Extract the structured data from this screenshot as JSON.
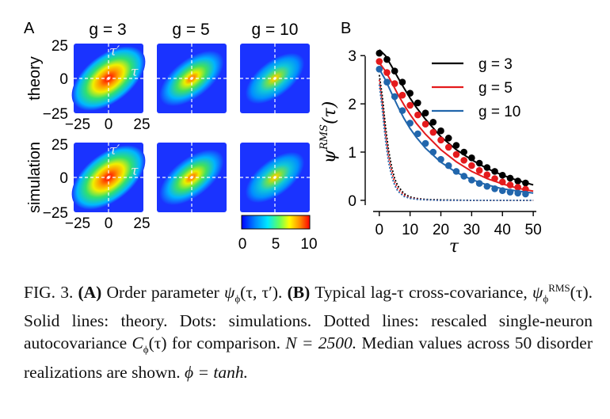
{
  "panel_a": {
    "label": "A",
    "columns": [
      "g = 3",
      "g = 5",
      "g = 10"
    ],
    "rows": [
      "theory",
      "simulation"
    ],
    "y_ticks": [
      "25",
      "0",
      "−25"
    ],
    "x_ticks": [
      "−25",
      "0",
      "25"
    ],
    "axis_tau_prime": "τ′",
    "axis_tau": "τ",
    "colorbar_ticks": [
      "0",
      "5",
      "10"
    ],
    "heatmap_peaks": [
      10,
      6,
      5
    ]
  },
  "chart_data": {
    "type": "line",
    "label": "B",
    "xlabel": "τ",
    "ylabel": "ψ^RMS(τ)",
    "xlim": [
      -2,
      51
    ],
    "ylim": [
      -0.1,
      3.25
    ],
    "x_ticks": [
      0,
      10,
      20,
      30,
      40,
      50
    ],
    "y_ticks": [
      0,
      1,
      2,
      3
    ],
    "legend_position": "top-right",
    "series": [
      {
        "name": "g = 3",
        "color": "#000000",
        "theory": {
          "x": [
            0,
            2,
            4,
            6,
            8,
            10,
            12,
            15,
            20,
            25,
            30,
            35,
            40,
            45,
            50
          ],
          "y": [
            3.12,
            3.0,
            2.78,
            2.55,
            2.33,
            2.12,
            1.93,
            1.68,
            1.32,
            1.05,
            0.84,
            0.66,
            0.52,
            0.41,
            0.32
          ]
        },
        "dots": {
          "x": [
            0,
            2.5,
            5,
            7.5,
            10,
            12.5,
            15,
            17.5,
            20,
            22.5,
            25,
            27.5,
            30,
            32.5,
            35,
            37.5,
            40,
            42.5,
            45,
            47.5
          ],
          "y": [
            3.05,
            2.92,
            2.68,
            2.45,
            2.22,
            2.02,
            1.81,
            1.62,
            1.44,
            1.29,
            1.14,
            1.0,
            0.88,
            0.77,
            0.68,
            0.6,
            0.52,
            0.46,
            0.4,
            0.36
          ]
        },
        "dotted": {
          "x": [
            0,
            1,
            2,
            3,
            4,
            5,
            6,
            8,
            10,
            12,
            15,
            20,
            30,
            40,
            50
          ],
          "y": [
            2.6,
            2.15,
            1.55,
            1.05,
            0.7,
            0.45,
            0.3,
            0.14,
            0.07,
            0.04,
            0.02,
            0.01,
            0.0,
            0.0,
            0.0
          ]
        }
      },
      {
        "name": "g = 5",
        "color": "#e41a1c",
        "theory": {
          "x": [
            0,
            2,
            4,
            6,
            8,
            10,
            12,
            15,
            20,
            25,
            30,
            35,
            40,
            45,
            50
          ],
          "y": [
            2.85,
            2.68,
            2.45,
            2.2,
            1.98,
            1.78,
            1.6,
            1.37,
            1.05,
            0.8,
            0.6,
            0.45,
            0.34,
            0.25,
            0.19
          ]
        },
        "dots": {
          "x": [
            0,
            2.5,
            5,
            7.5,
            10,
            12.5,
            15,
            17.5,
            20,
            22.5,
            25,
            27.5,
            30,
            32.5,
            35,
            37.5,
            40,
            42.5,
            45,
            47.5
          ],
          "y": [
            2.88,
            2.65,
            2.42,
            2.18,
            1.97,
            1.77,
            1.58,
            1.41,
            1.25,
            1.1,
            0.95,
            0.83,
            0.72,
            0.62,
            0.53,
            0.45,
            0.38,
            0.32,
            0.27,
            0.23
          ]
        },
        "dotted": {
          "x": [
            0,
            1,
            2,
            3,
            4,
            5,
            6,
            8,
            10,
            12,
            15,
            20,
            30,
            40,
            50
          ],
          "y": [
            2.5,
            2.0,
            1.4,
            0.92,
            0.6,
            0.38,
            0.24,
            0.11,
            0.05,
            0.03,
            0.01,
            0.0,
            0.0,
            0.0,
            0.0
          ]
        }
      },
      {
        "name": "g = 10",
        "color": "#2166ac",
        "theory": {
          "x": [
            0,
            2,
            4,
            6,
            8,
            10,
            12,
            15,
            20,
            25,
            30,
            35,
            40,
            45,
            50
          ],
          "y": [
            2.72,
            2.5,
            2.22,
            1.95,
            1.7,
            1.49,
            1.31,
            1.08,
            0.79,
            0.58,
            0.43,
            0.32,
            0.24,
            0.19,
            0.15
          ]
        },
        "dots": {
          "x": [
            0,
            2.5,
            5,
            7.5,
            10,
            12.5,
            15,
            17.5,
            20,
            22.5,
            25,
            27.5,
            30,
            32.5,
            35,
            37.5,
            40,
            42.5,
            45,
            47.5
          ],
          "y": [
            2.72,
            2.45,
            2.15,
            1.86,
            1.6,
            1.38,
            1.18,
            1.0,
            0.85,
            0.72,
            0.6,
            0.5,
            0.42,
            0.35,
            0.29,
            0.24,
            0.2,
            0.17,
            0.15,
            0.13
          ]
        },
        "dotted": {
          "x": [
            0,
            1,
            2,
            3,
            4,
            5,
            6,
            8,
            10,
            12,
            15,
            20,
            30,
            40,
            50
          ],
          "y": [
            2.4,
            1.85,
            1.25,
            0.8,
            0.5,
            0.31,
            0.19,
            0.08,
            0.04,
            0.02,
            0.01,
            0.0,
            0.0,
            0.0,
            0.0
          ]
        }
      }
    ]
  },
  "caption": {
    "fig_label": "FIG. 3.",
    "part_a_label": "(A)",
    "part_a_text": "Order parameter",
    "psi_phi": "ψ",
    "psi_sub": "ϕ",
    "tau_args": "(τ, τ′).",
    "part_b_label": "(B)",
    "part_b_text": "Typical lag-τ cross-covariance,",
    "rms_sup": "RMS",
    "tau_arg": "(τ).",
    "solid": "Solid lines: theory.",
    "dots": "Dots: simulations.",
    "dotted": "Dotted lines: rescaled single-neuron autocovariance",
    "c_phi": "C",
    "c_tail": "(τ) for comparison.",
    "n_eq": "N = 2500.",
    "median": "Median values across 50 disorder realizations are shown.",
    "phi_eq": "ϕ = tanh."
  }
}
